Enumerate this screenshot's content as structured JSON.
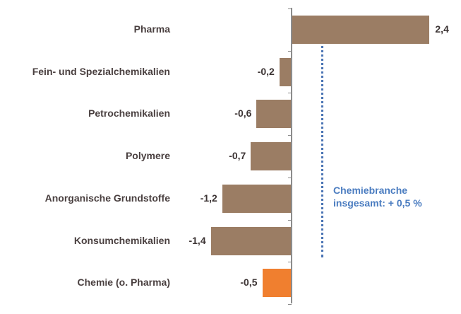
{
  "chart_data": {
    "type": "bar",
    "orientation": "horizontal",
    "title": "",
    "xlabel": "",
    "ylabel": "",
    "categories": [
      "Pharma",
      "Fein- und Spezialchemikalien",
      "Petrochemikalien",
      "Polymere",
      "Anorganische Grundstoffe",
      "Konsumchemikalien",
      "Chemie (o. Pharma)"
    ],
    "values": [
      2.4,
      -0.2,
      -0.6,
      -0.7,
      -1.2,
      -1.4,
      -0.5
    ],
    "value_labels": [
      "2,4",
      "-0,2",
      "-0,6",
      "-0,7",
      "-1,2",
      "-1,4",
      "-0,5"
    ],
    "bar_colors": [
      "#9b7d64",
      "#9b7d64",
      "#9b7d64",
      "#9b7d64",
      "#9b7d64",
      "#9b7d64",
      "#f07f2f"
    ],
    "reference_line": {
      "value": 0.5,
      "style": "dotted",
      "color": "#4a74b4"
    },
    "annotation": {
      "line1": "Chemiebranche",
      "line2": "insgesamt: + 0,5 %",
      "color": "#4a7cc0"
    },
    "xlim": [
      -1.5,
      2.6
    ],
    "grid": false,
    "legend": "none"
  }
}
